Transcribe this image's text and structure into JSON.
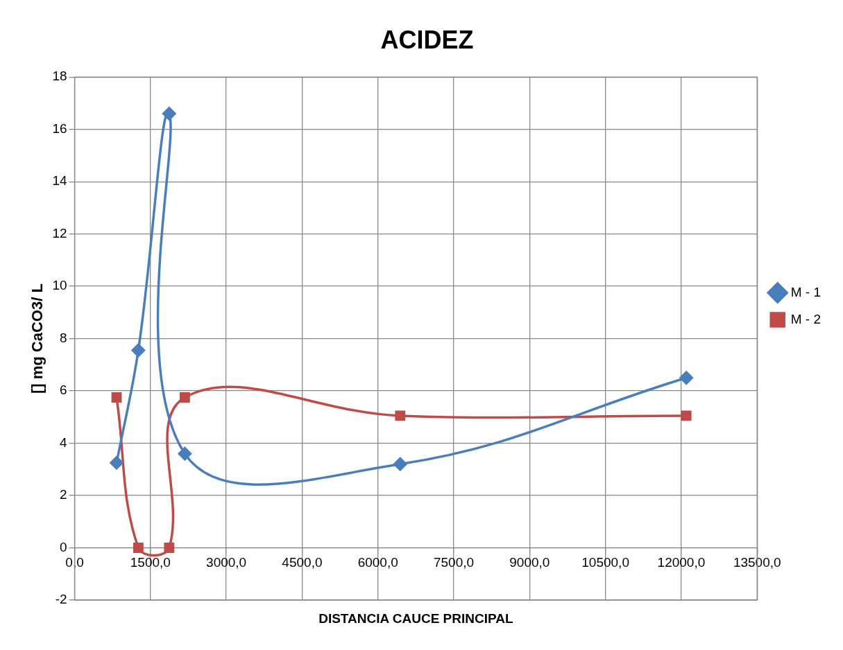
{
  "chart_data": {
    "type": "line",
    "title": "ACIDEZ",
    "xlabel": "DISTANCIA CAUCE PRINCIPAL",
    "ylabel": "[] mg CaCO3/ L",
    "xlim": [
      0,
      13500
    ],
    "xticks": [
      {
        "value": 0,
        "label": "0,0"
      },
      {
        "value": 1500,
        "label": "1500,0"
      },
      {
        "value": 3000,
        "label": "3000,0"
      },
      {
        "value": 4500,
        "label": "4500,0"
      },
      {
        "value": 6000,
        "label": "6000,0"
      },
      {
        "value": 7500,
        "label": "7500,0"
      },
      {
        "value": 9000,
        "label": "9000,0"
      },
      {
        "value": 10500,
        "label": "10500,0"
      },
      {
        "value": 12000,
        "label": "12000,0"
      },
      {
        "value": 13500,
        "label": "13500,0"
      }
    ],
    "ylim": [
      -2,
      18
    ],
    "yticks": [
      -2,
      0,
      2,
      4,
      6,
      8,
      10,
      12,
      14,
      16,
      18
    ],
    "grid": true,
    "legend": "right",
    "series": [
      {
        "name": "M - 1",
        "color": "#4a7ebb",
        "marker": "diamond",
        "x": [
          830,
          1260,
          1870,
          2180,
          6440,
          12100
        ],
        "values": [
          3.25,
          7.55,
          16.6,
          3.6,
          3.2,
          6.5
        ]
      },
      {
        "name": "M - 2",
        "color": "#be4b48",
        "marker": "square",
        "x": [
          830,
          1260,
          1870,
          2180,
          6440,
          12100
        ],
        "values": [
          5.75,
          0,
          0,
          5.75,
          5.05,
          5.05
        ]
      }
    ]
  }
}
